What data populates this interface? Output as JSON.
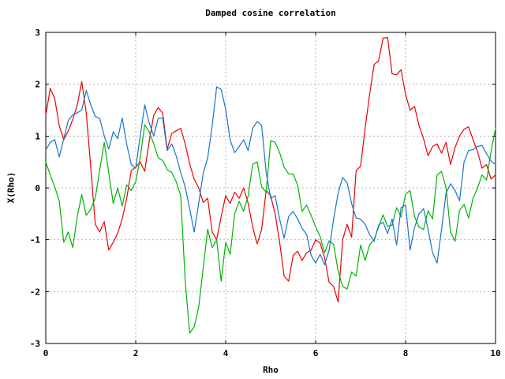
{
  "figure": {
    "background": "#ffffff",
    "title": "Damped cosine correlation",
    "xlabel": "Rho",
    "ylabel": "X(Rho)"
  },
  "axes": {
    "x_ticks": [
      0,
      2,
      4,
      6,
      8,
      10
    ],
    "x_tick_labels": [
      "0",
      "2",
      "4",
      "6",
      "8",
      "10"
    ],
    "y_ticks": [
      3,
      2,
      1,
      0,
      -1,
      -2,
      -3
    ],
    "y_tick_labels": [
      "3",
      "2",
      "1",
      "0",
      "-1",
      "-2",
      "-3"
    ],
    "grid_color": "#b4b4b4",
    "border_color": "#000000"
  },
  "chart_data": {
    "type": "line",
    "title": "Damped cosine correlation",
    "xlabel": "Rho",
    "ylabel": "X(Rho)",
    "xlim": [
      0,
      10
    ],
    "ylim": [
      -3,
      3
    ],
    "grid": true,
    "legend_position": "none",
    "x_start": 0,
    "x_step": 0.1,
    "series": [
      {
        "name": "series-red",
        "color": "#ee0000",
        "values": [
          1.4,
          1.92,
          1.72,
          1.2,
          0.93,
          1.1,
          1.32,
          1.6,
          2.05,
          1.45,
          0.4,
          -0.7,
          -0.85,
          -0.65,
          -1.2,
          -1.05,
          -0.87,
          -0.6,
          -0.2,
          0.33,
          0.4,
          0.5,
          0.32,
          0.9,
          1.4,
          1.55,
          1.44,
          0.75,
          1.05,
          1.1,
          1.15,
          0.85,
          0.46,
          0.17,
          0.0,
          -0.28,
          -0.2,
          -0.85,
          -1.0,
          -0.55,
          -0.15,
          -0.3,
          -0.08,
          -0.2,
          0.0,
          -0.3,
          -0.75,
          -1.08,
          -0.8,
          -0.05,
          -0.15,
          -0.5,
          -1.05,
          -1.7,
          -1.8,
          -1.3,
          -1.22,
          -1.4,
          -1.25,
          -1.2,
          -1.0,
          -1.06,
          -1.35,
          -1.82,
          -1.9,
          -2.2,
          -1.0,
          -0.7,
          -0.95,
          0.33,
          0.42,
          1.15,
          1.8,
          2.38,
          2.45,
          2.89,
          2.9,
          2.2,
          2.18,
          2.28,
          1.8,
          1.5,
          1.57,
          1.2,
          0.95,
          0.62,
          0.8,
          0.85,
          0.67,
          0.88,
          0.45,
          0.78,
          1.0,
          1.13,
          1.18,
          0.93,
          0.7,
          0.38,
          0.45,
          0.17,
          0.25
        ]
      },
      {
        "name": "series-green",
        "color": "#00b400",
        "values": [
          0.5,
          0.25,
          0.02,
          -0.25,
          -1.05,
          -0.85,
          -1.15,
          -0.55,
          -0.13,
          -0.53,
          -0.41,
          -0.2,
          0.35,
          0.88,
          0.3,
          -0.3,
          0.0,
          -0.35,
          0.06,
          -0.05,
          0.12,
          0.58,
          1.22,
          1.08,
          0.85,
          0.58,
          0.53,
          0.35,
          0.3,
          0.12,
          -0.15,
          -1.8,
          -2.8,
          -2.68,
          -2.3,
          -1.55,
          -0.8,
          -1.15,
          -1.0,
          -1.8,
          -1.05,
          -1.28,
          -0.5,
          -0.26,
          -0.45,
          -0.15,
          0.46,
          0.5,
          0.02,
          -0.08,
          0.91,
          0.88,
          0.68,
          0.4,
          0.27,
          0.27,
          0.05,
          -0.45,
          -0.33,
          -0.53,
          -0.75,
          -0.94,
          -1.25,
          -1.02,
          -1.09,
          -1.6,
          -1.9,
          -1.95,
          -1.62,
          -1.7,
          -1.1,
          -1.4,
          -1.1,
          -1.0,
          -0.75,
          -0.52,
          -0.74,
          -0.72,
          -0.38,
          -0.56,
          -0.12,
          -0.05,
          -0.55,
          -0.76,
          -0.8,
          -0.44,
          -0.6,
          0.25,
          0.32,
          0.0,
          -0.85,
          -1.03,
          -0.43,
          -0.32,
          -0.58,
          -0.2,
          0.0,
          0.25,
          0.15,
          0.7,
          1.15
        ]
      },
      {
        "name": "series-blue",
        "color": "#1874cd",
        "values": [
          0.73,
          0.88,
          0.93,
          0.6,
          0.95,
          1.3,
          1.41,
          1.45,
          1.5,
          1.88,
          1.6,
          1.38,
          1.34,
          1.0,
          0.75,
          1.08,
          0.95,
          1.35,
          0.84,
          0.45,
          0.38,
          1.0,
          1.6,
          1.25,
          1.0,
          1.34,
          1.35,
          0.72,
          0.85,
          0.62,
          0.3,
          0.02,
          -0.4,
          -0.85,
          -0.3,
          0.28,
          0.58,
          1.2,
          1.95,
          1.9,
          1.52,
          0.92,
          0.68,
          0.8,
          0.93,
          0.72,
          1.15,
          1.28,
          1.2,
          0.3,
          -0.2,
          -0.15,
          -0.6,
          -0.97,
          -0.55,
          -0.45,
          -0.6,
          -0.78,
          -0.9,
          -1.3,
          -1.45,
          -1.28,
          -1.48,
          -1.2,
          -0.6,
          -0.1,
          0.2,
          0.1,
          -0.3,
          -0.58,
          -0.6,
          -0.7,
          -0.9,
          -1.03,
          -0.72,
          -0.66,
          -0.88,
          -0.6,
          -1.1,
          -0.38,
          -0.33,
          -1.2,
          -0.76,
          -0.5,
          -0.4,
          -0.8,
          -1.25,
          -1.45,
          -0.8,
          -0.1,
          0.08,
          -0.05,
          -0.25,
          0.5,
          0.72,
          0.74,
          0.8,
          0.82,
          0.66,
          0.52,
          0.45
        ]
      }
    ]
  }
}
